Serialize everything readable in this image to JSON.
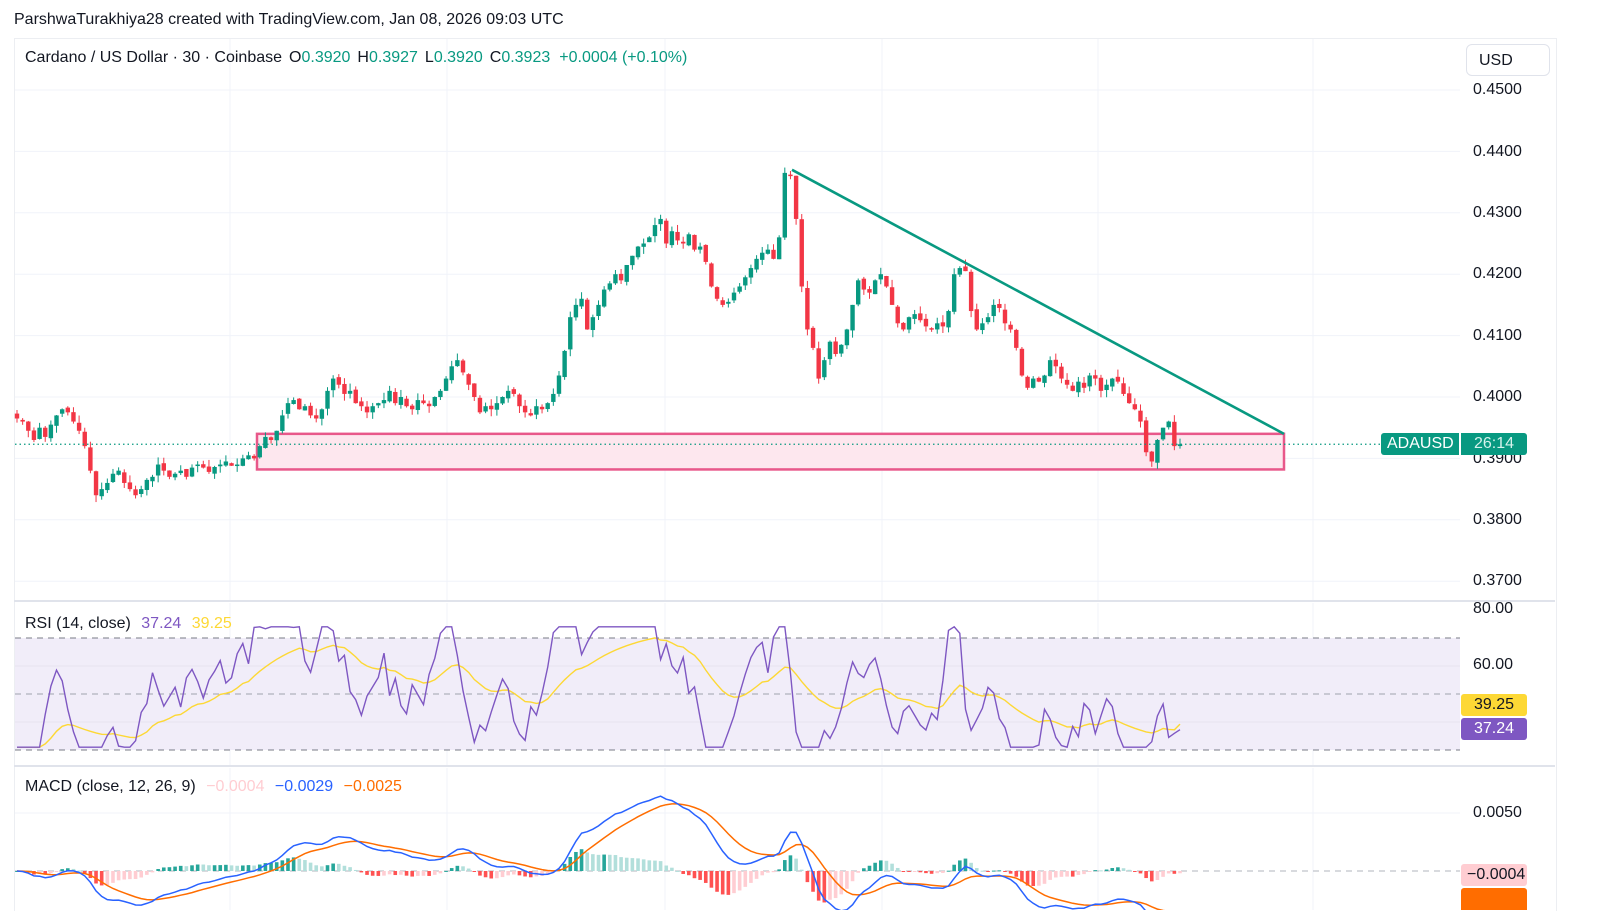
{
  "credit": "ParshwaTurakhiya28 created with TradingView.com, Jan 08, 2026 09:03 UTC",
  "legend": {
    "symbol": "Cardano / US Dollar · 30 · Coinbase",
    "open_label": "O",
    "open": "0.3920",
    "high_label": "H",
    "high": "0.3927",
    "low_label": "L",
    "low": "0.3920",
    "close_label": "C",
    "close": "0.3923",
    "change": "+0.0004 (+0.10%)"
  },
  "currency_button": "USD",
  "price_axis": [
    "0.4500",
    "0.4400",
    "0.4300",
    "0.4200",
    "0.4100",
    "0.4000",
    "0.3900",
    "0.3800",
    "0.3700"
  ],
  "price_tag": {
    "symbol": "ADAUSD",
    "countdown": "26:14",
    "color": "#089981"
  },
  "rsi": {
    "label": "RSI (14, close)",
    "value": "37.24",
    "ma_value": "39.25",
    "axis": [
      "80.00",
      "60.00"
    ],
    "line_color": "#7e57c2",
    "ma_color": "#fdd835"
  },
  "macd": {
    "label": "MACD (close, 12, 26, 9)",
    "histogram": "−0.0004",
    "macd": "−0.0029",
    "signal": "−0.0025",
    "axis": [
      "0.0050"
    ],
    "hist_tag": "−0.0004",
    "macd_color": "#2962ff",
    "signal_color": "#ff6d00"
  },
  "colors": {
    "up": "#089981",
    "down": "#f23645",
    "trendline": "#089981",
    "zone_border": "#e8588a",
    "zone_fill": "#fde7ee"
  },
  "chart_data": {
    "type": "candlestick",
    "title": "Cardano / US Dollar · 30 · Coinbase",
    "ylabel": "USD",
    "ylim": [
      0.365,
      0.455
    ],
    "price_ticks": [
      0.45,
      0.44,
      0.43,
      0.42,
      0.41,
      0.4,
      0.39,
      0.38,
      0.37
    ],
    "close_path": [
      0.3965,
      0.396,
      0.3945,
      0.393,
      0.395,
      0.3935,
      0.3955,
      0.397,
      0.398,
      0.3975,
      0.396,
      0.3945,
      0.392,
      0.388,
      0.384,
      0.385,
      0.386,
      0.3875,
      0.388,
      0.386,
      0.385,
      0.384,
      0.385,
      0.3865,
      0.387,
      0.389,
      0.388,
      0.387,
      0.3875,
      0.388,
      0.387,
      0.3885,
      0.389,
      0.3885,
      0.3878,
      0.3886,
      0.389,
      0.3895,
      0.3888,
      0.389,
      0.39,
      0.3905,
      0.39,
      0.392,
      0.3935,
      0.393,
      0.3945,
      0.397,
      0.399,
      0.3995,
      0.398,
      0.3985,
      0.397,
      0.3965,
      0.398,
      0.401,
      0.403,
      0.402,
      0.4005,
      0.401,
      0.399,
      0.3985,
      0.3975,
      0.3985,
      0.399,
      0.3995,
      0.401,
      0.399,
      0.4,
      0.3985,
      0.398,
      0.3995,
      0.399,
      0.3985,
      0.4,
      0.401,
      0.403,
      0.405,
      0.406,
      0.404,
      0.402,
      0.4,
      0.3975,
      0.3985,
      0.398,
      0.399,
      0.4,
      0.401,
      0.4005,
      0.3985,
      0.3975,
      0.397,
      0.3985,
      0.398,
      0.399,
      0.4005,
      0.4035,
      0.4075,
      0.413,
      0.415,
      0.416,
      0.411,
      0.413,
      0.415,
      0.4175,
      0.4185,
      0.42,
      0.419,
      0.4215,
      0.423,
      0.4245,
      0.425,
      0.426,
      0.428,
      0.429,
      0.425,
      0.427,
      0.4255,
      0.425,
      0.4265,
      0.424,
      0.4245,
      0.422,
      0.418,
      0.416,
      0.415,
      0.4155,
      0.417,
      0.418,
      0.4195,
      0.421,
      0.4225,
      0.4235,
      0.424,
      0.4225,
      0.426,
      0.4365,
      0.436,
      0.429,
      0.418,
      0.411,
      0.408,
      0.403,
      0.406,
      0.409,
      0.407,
      0.4085,
      0.411,
      0.415,
      0.419,
      0.4175,
      0.417,
      0.419,
      0.42,
      0.418,
      0.415,
      0.412,
      0.411,
      0.413,
      0.4135,
      0.4125,
      0.4115,
      0.411,
      0.412,
      0.4115,
      0.414,
      0.42,
      0.421,
      0.4205,
      0.414,
      0.411,
      0.412,
      0.413,
      0.415,
      0.4145,
      0.412,
      0.411,
      0.408,
      0.4035,
      0.4015,
      0.403,
      0.4025,
      0.4035,
      0.406,
      0.405,
      0.403,
      0.402,
      0.401,
      0.4025,
      0.4015,
      0.4035,
      0.403,
      0.401,
      0.402,
      0.403,
      0.4025,
      0.4005,
      0.399,
      0.398,
      0.396,
      0.391,
      0.3895,
      0.393,
      0.395,
      0.396,
      0.392,
      0.3923
    ],
    "trendline": {
      "from": [
        792,
        0.437
      ],
      "to": [
        1284,
        0.394
      ]
    },
    "support_zone": {
      "x_from": 257,
      "x_to": 1284,
      "top": 0.394,
      "bottom": 0.3882
    },
    "last_price": 0.3923,
    "rsi": {
      "ylim": [
        20,
        82
      ],
      "bands": [
        70,
        50,
        30
      ],
      "last": 37.24,
      "ma_last": 39.25
    },
    "macd": {
      "last_hist": -0.0004,
      "last_macd": -0.0029,
      "last_signal": -0.0025
    }
  }
}
